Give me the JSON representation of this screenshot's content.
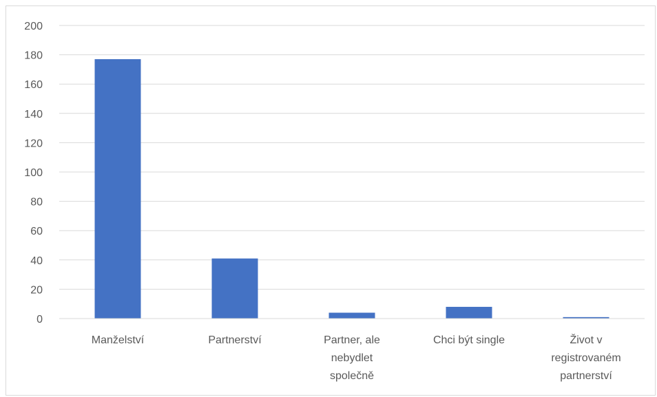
{
  "chart_data": {
    "type": "bar",
    "title": "",
    "xlabel": "",
    "ylabel": "",
    "categories": [
      [
        "Manželství"
      ],
      [
        "Partnerství"
      ],
      [
        "Partner, ale",
        "nebydlet",
        "společně"
      ],
      [
        "Chci být single"
      ],
      [
        "Život v",
        "registrovaném",
        "partnerství"
      ]
    ],
    "values": [
      177,
      41,
      4,
      8,
      1
    ],
    "ylim": [
      0,
      200
    ],
    "yticks": [
      0,
      20,
      40,
      60,
      80,
      100,
      120,
      140,
      160,
      180,
      200
    ],
    "grid": true,
    "legend": "none",
    "colors": {
      "bar": "#4472c4",
      "grid": "#d9d9d9",
      "axis": "#d9d9d9",
      "text": "#595959"
    }
  }
}
